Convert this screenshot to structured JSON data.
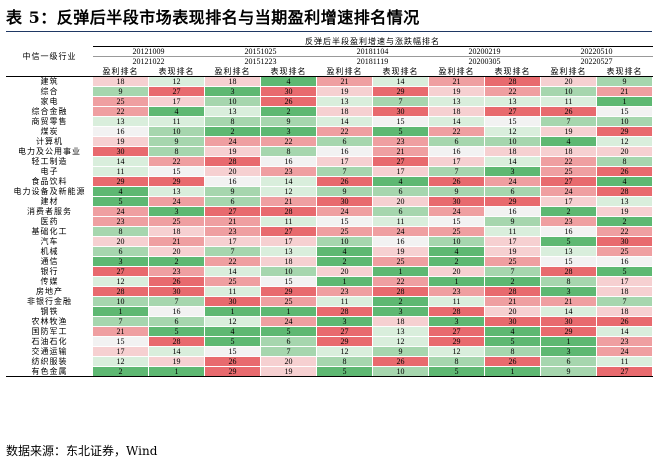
{
  "title": "表 5：反弹后半段市场表现排名与当期盈利增速排名情况",
  "header_top": "反弹后半段盈利增速与涨跌幅排名",
  "industry_header": "中信一级行业",
  "periods": [
    {
      "start": "20121009",
      "end": "20121022"
    },
    {
      "start": "20151025",
      "end": "20151223"
    },
    {
      "start": "20181104",
      "end": "20181119"
    },
    {
      "start": "20200219",
      "end": "20200305"
    },
    {
      "start": "20220510",
      "end": "20220527"
    }
  ],
  "col_labels": {
    "profit": "盈利排名",
    "perf": "表现排名"
  },
  "rows": [
    {
      "name": "建筑",
      "v": [
        18,
        12,
        18,
        4,
        21,
        14,
        21,
        28,
        20,
        9
      ]
    },
    {
      "name": "综合",
      "v": [
        9,
        27,
        3,
        30,
        19,
        29,
        19,
        22,
        10,
        21
      ]
    },
    {
      "name": "家电",
      "v": [
        25,
        17,
        10,
        26,
        13,
        7,
        13,
        13,
        11,
        1
      ]
    },
    {
      "name": "综合金融",
      "v": [
        22,
        4,
        13,
        2,
        18,
        30,
        18,
        27,
        26,
        15
      ]
    },
    {
      "name": "商贸零售",
      "v": [
        13,
        11,
        8,
        9,
        14,
        15,
        14,
        15,
        7,
        10
      ]
    },
    {
      "name": "煤炭",
      "v": [
        16,
        10,
        2,
        3,
        22,
        5,
        22,
        12,
        19,
        29
      ]
    },
    {
      "name": "计算机",
      "v": [
        19,
        9,
        24,
        22,
        6,
        23,
        6,
        10,
        4,
        12
      ]
    },
    {
      "name": "电力及公用事业",
      "v": [
        30,
        8,
        19,
        8,
        16,
        21,
        16,
        18,
        18,
        20
      ]
    },
    {
      "name": "轻工制造",
      "v": [
        14,
        22,
        28,
        16,
        17,
        27,
        17,
        14,
        22,
        8
      ]
    },
    {
      "name": "电子",
      "v": [
        11,
        15,
        20,
        23,
        7,
        17,
        7,
        3,
        25,
        26
      ]
    },
    {
      "name": "食品饮料",
      "v": [
        29,
        29,
        16,
        14,
        26,
        4,
        26,
        24,
        27,
        4
      ]
    },
    {
      "name": "电力设备及新能源",
      "v": [
        4,
        13,
        9,
        12,
        9,
        6,
        9,
        6,
        24,
        28
      ]
    },
    {
      "name": "建材",
      "v": [
        5,
        24,
        6,
        21,
        30,
        20,
        30,
        29,
        17,
        13
      ]
    },
    {
      "name": "消费者服务",
      "v": [
        24,
        3,
        27,
        28,
        24,
        6,
        24,
        16,
        2,
        19
      ]
    },
    {
      "name": "医药",
      "v": [
        23,
        25,
        21,
        11,
        15,
        11,
        15,
        9,
        23,
        2
      ]
    },
    {
      "name": "基础化工",
      "v": [
        8,
        18,
        23,
        27,
        25,
        24,
        25,
        11,
        16,
        22
      ]
    },
    {
      "name": "汽车",
      "v": [
        20,
        21,
        17,
        17,
        10,
        16,
        10,
        17,
        5,
        30
      ]
    },
    {
      "name": "机械",
      "v": [
        6,
        20,
        7,
        13,
        4,
        19,
        4,
        19,
        13,
        25
      ]
    },
    {
      "name": "通信",
      "v": [
        3,
        2,
        22,
        18,
        2,
        25,
        2,
        25,
        15,
        16
      ]
    },
    {
      "name": "银行",
      "v": [
        27,
        23,
        14,
        10,
        20,
        1,
        20,
        7,
        28,
        5
      ]
    },
    {
      "name": "传媒",
      "v": [
        12,
        26,
        25,
        15,
        1,
        22,
        1,
        2,
        8,
        17
      ]
    },
    {
      "name": "房地产",
      "v": [
        28,
        30,
        11,
        29,
        23,
        28,
        23,
        28,
        3,
        18
      ]
    },
    {
      "name": "非银行金融",
      "v": [
        10,
        7,
        30,
        25,
        11,
        2,
        11,
        21,
        21,
        7
      ]
    },
    {
      "name": "钢铁",
      "v": [
        1,
        16,
        1,
        1,
        28,
        3,
        28,
        20,
        14,
        18
      ]
    },
    {
      "name": "农林牧渔",
      "v": [
        7,
        6,
        12,
        24,
        3,
        18,
        3,
        30,
        30,
        26
      ]
    },
    {
      "name": "国防军工",
      "v": [
        21,
        5,
        4,
        5,
        27,
        13,
        27,
        4,
        29,
        14
      ]
    },
    {
      "name": "石油石化",
      "v": [
        15,
        28,
        5,
        6,
        29,
        12,
        29,
        5,
        1,
        23
      ]
    },
    {
      "name": "交通运输",
      "v": [
        17,
        14,
        15,
        7,
        12,
        9,
        12,
        8,
        3,
        24
      ]
    },
    {
      "name": "纺织服装",
      "v": [
        12,
        19,
        26,
        20,
        8,
        26,
        8,
        26,
        6,
        11
      ]
    },
    {
      "name": "有色金属",
      "v": [
        2,
        1,
        29,
        19,
        5,
        10,
        5,
        1,
        9,
        27
      ]
    }
  ],
  "source": "数据来源：东北证券，Wind",
  "colors": {
    "green_dark": "#5eb872",
    "green_mid": "#a6d6ae",
    "green_light": "#d9eedc",
    "neutral": "#f2f2f2",
    "red_light": "#f6d0d1",
    "red_mid": "#ef9fa1",
    "red_dark": "#e86a6e",
    "title_rule": "#1f3864"
  }
}
